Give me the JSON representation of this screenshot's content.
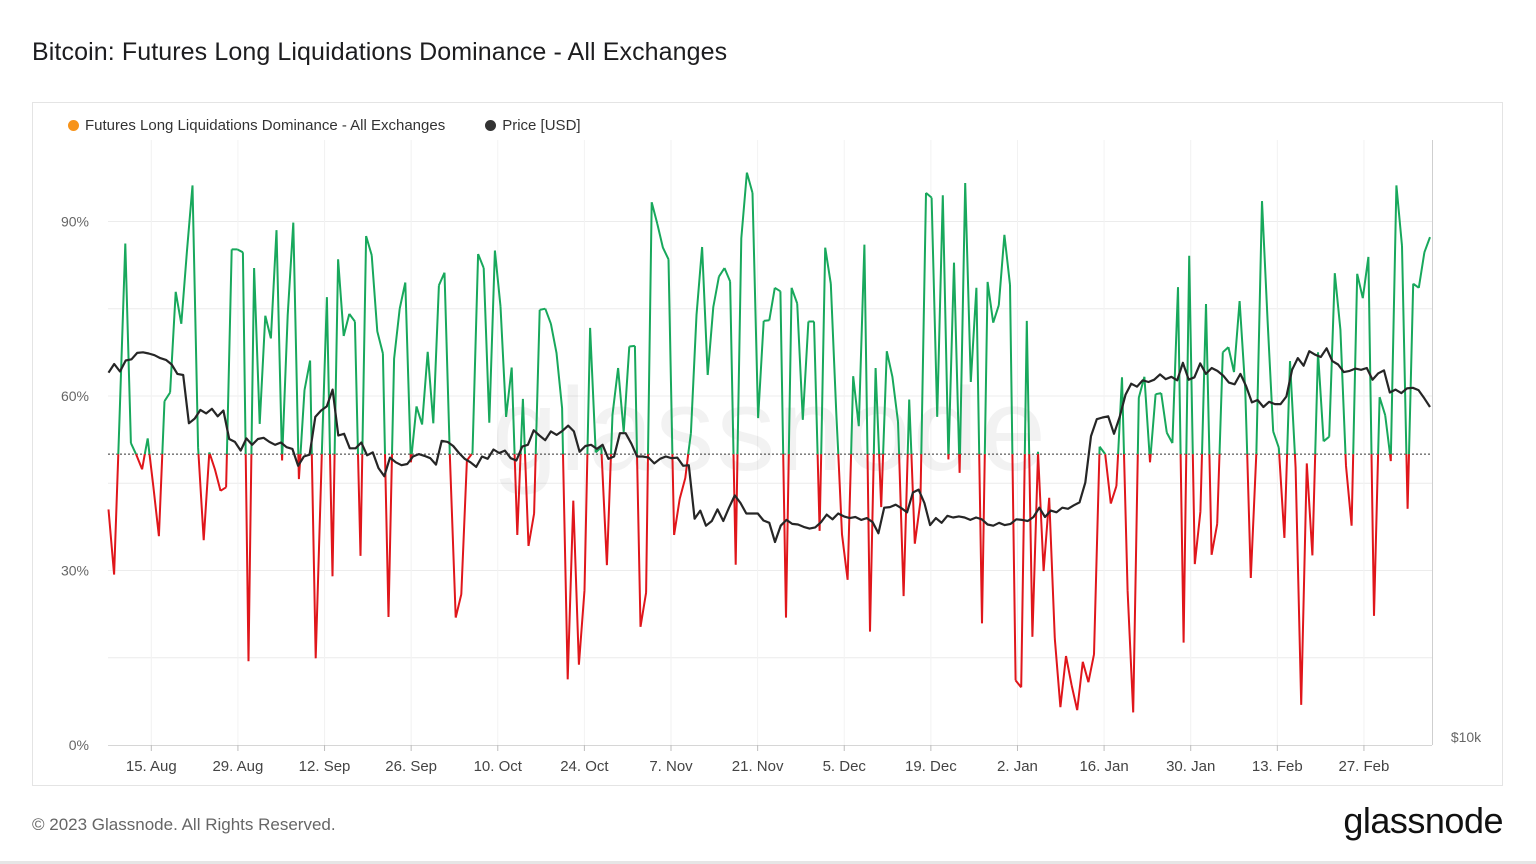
{
  "header": {
    "title": "Bitcoin: Futures Long Liquidations Dominance - All Exchanges"
  },
  "legend": {
    "items": [
      {
        "label": "Futures Long Liquidations Dominance - All Exchanges",
        "color": "#f7931a"
      },
      {
        "label": "Price [USD]",
        "color": "#333333"
      }
    ]
  },
  "footer": {
    "copyright": "© 2023 Glassnode. All Rights Reserved.",
    "brand": "glassnode",
    "watermark": "glassnode"
  },
  "colors": {
    "above": "#18a85c",
    "below": "#e0161b",
    "price": "#262626",
    "grid": "#ececec",
    "axis_text": "#666666"
  },
  "chart_data": {
    "type": "line",
    "title": "Bitcoin: Futures Long Liquidations Dominance - All Exchanges",
    "y_ticks": [
      "0%",
      "30%",
      "60%",
      "90%"
    ],
    "y_tick_values": [
      0,
      30,
      60,
      90
    ],
    "ylim": [
      0,
      104
    ],
    "threshold": 50,
    "right_axis_label": "$10k",
    "x_ticks": [
      "15. Aug",
      "29. Aug",
      "12. Sep",
      "26. Sep",
      "10. Oct",
      "24. Oct",
      "7. Nov",
      "21. Nov",
      "5. Dec",
      "19. Dec",
      "2. Jan",
      "16. Jan",
      "30. Jan",
      "13. Feb",
      "27. Feb"
    ],
    "x_tick_days": [
      7,
      21,
      35,
      49,
      63,
      77,
      91,
      105,
      119,
      133,
      147,
      161,
      175,
      189,
      203
    ],
    "x_range_days": [
      0,
      214
    ],
    "series": [
      {
        "name": "Futures Long Liquidations Dominance - All Exchanges",
        "values": [
          40.5,
          29.3,
          57.1,
          86.2,
          51.9,
          49.8,
          47.4,
          52.7,
          44.5,
          35.9,
          59.1,
          60.6,
          77.9,
          72.4,
          84.8,
          96.2,
          51.1,
          35.2,
          50.3,
          47.4,
          43.7,
          44.3,
          85.2,
          85.2,
          84.7,
          14.4,
          82.0,
          55.2,
          73.8,
          69.9,
          88.5,
          48.9,
          73.9,
          89.8,
          45.7,
          61.0,
          66.1,
          14.9,
          47.0,
          77.0,
          29.0,
          83.5,
          70.3,
          74.1,
          72.8,
          32.5,
          87.5,
          84.2,
          71.1,
          67.3,
          22.0,
          66.4,
          75.0,
          79.5,
          48.6,
          58.2,
          55.1,
          67.6,
          55.3,
          79.0,
          81.2,
          48.6,
          21.9,
          25.9,
          48.9,
          50.2,
          84.4,
          82.0,
          55.4,
          85.0,
          75.4,
          56.4,
          64.9,
          36.1,
          59.5,
          34.2,
          39.8,
          74.8,
          75.0,
          72.4,
          67.4,
          57.9,
          11.3,
          42.0,
          13.8,
          26.6,
          71.7,
          50.3,
          51.2,
          30.9,
          56.8,
          64.8,
          53.8,
          68.5,
          68.6,
          20.3,
          26.2,
          93.3,
          89.6,
          85.5,
          83.5,
          36.1,
          42.3,
          45.9,
          53.6,
          73.9,
          85.6,
          63.6,
          75.3,
          80.5,
          82.0,
          79.7,
          31.0,
          87.1,
          98.4,
          94.9,
          56.2,
          72.9,
          73.0,
          78.6,
          78.0,
          21.9,
          78.6,
          75.9,
          55.9,
          72.8,
          72.8,
          36.8,
          85.5,
          79.3,
          56.6,
          36.2,
          28.4,
          63.4,
          54.8,
          86.0,
          19.5,
          64.8,
          40.9,
          67.7,
          63.3,
          55.6,
          25.6,
          59.4,
          34.6,
          41.8,
          94.9,
          94.1,
          56.4,
          94.5,
          49.1,
          82.9,
          46.8,
          96.6,
          62.4,
          78.6,
          20.9,
          79.6,
          72.6,
          75.6,
          87.7,
          79.1,
          11.1,
          9.9,
          72.9,
          18.6,
          50.4,
          29.9,
          42.5,
          18.3,
          6.5,
          15.3,
          10.3,
          6.0,
          14.3,
          10.8,
          15.6,
          51.3,
          50.0,
          41.5,
          44.5,
          63.2,
          26.5,
          5.6,
          59.7,
          63.3,
          48.6,
          60.3,
          60.5,
          53.7,
          51.9,
          78.7,
          17.6,
          84.1,
          31.1,
          40.1,
          75.8,
          32.7,
          38.0,
          67.5,
          68.4,
          64.1,
          76.3,
          61.3,
          28.7,
          50.4,
          93.5,
          72.9,
          53.9,
          51.1,
          35.6,
          66.0,
          47.7,
          6.9,
          48.4,
          32.6,
          67.5,
          52.2,
          53.0,
          81.1,
          71.4,
          48.0,
          37.7,
          81.0,
          76.8,
          83.9,
          22.2,
          59.8,
          56.7,
          48.8,
          96.2,
          85.8,
          40.6,
          79.3,
          78.6,
          84.7,
          87.3
        ],
        "colors": {
          "above": "#18a85c",
          "below": "#e0161b"
        }
      },
      {
        "name": "Price [USD]",
        "values": [
          64.0,
          65.5,
          64.2,
          66.1,
          66.3,
          67.4,
          67.5,
          67.3,
          67.0,
          66.5,
          66.2,
          65.4,
          63.8,
          63.6,
          55.3,
          56.1,
          57.6,
          57.0,
          57.8,
          56.5,
          57.5,
          52.6,
          52.1,
          50.6,
          52.7,
          51.6,
          52.6,
          52.8,
          52.1,
          51.6,
          52.0,
          51.2,
          50.9,
          48.0,
          49.6,
          49.9,
          56.4,
          57.5,
          58.2,
          61.1,
          53.2,
          53.5,
          51.0,
          51.0,
          52.0,
          49.8,
          50.3,
          47.6,
          46.2,
          49.4,
          48.6,
          48.1,
          48.3,
          49.6,
          50.0,
          49.7,
          49.3,
          48.2,
          52.3,
          52.1,
          51.4,
          50.2,
          49.2,
          48.6,
          47.8,
          49.6,
          49.2,
          50.8,
          50.2,
          50.6,
          49.3,
          48.9,
          51.3,
          51.6,
          54.1,
          53.2,
          52.4,
          53.9,
          53.3,
          54.0,
          54.9,
          53.9,
          50.4,
          51.4,
          51.6,
          50.9,
          51.6,
          49.2,
          49.6,
          53.6,
          53.6,
          51.8,
          49.6,
          49.6,
          49.4,
          48.4,
          49.2,
          49.6,
          49.3,
          49.4,
          48.0,
          48.1,
          38.9,
          40.3,
          37.7,
          38.5,
          40.5,
          38.5,
          40.8,
          42.9,
          41.6,
          39.8,
          39.8,
          39.8,
          38.6,
          38.2,
          34.9,
          37.7,
          38.7,
          38.0,
          37.9,
          37.5,
          37.2,
          37.4,
          38.3,
          39.6,
          38.8,
          39.8,
          39.3,
          39.0,
          39.2,
          38.7,
          39.0,
          38.3,
          36.4,
          40.8,
          40.9,
          41.3,
          40.7,
          40.0,
          43.4,
          43.9,
          41.6,
          37.8,
          39.0,
          38.2,
          39.4,
          39.1,
          39.3,
          39.1,
          38.7,
          39.1,
          38.8,
          37.9,
          37.7,
          38.2,
          37.8,
          38.0,
          38.8,
          38.7,
          38.5,
          39.2,
          40.8,
          39.2,
          40.3,
          40.0,
          40.8,
          40.6,
          41.2,
          41.7,
          45.1,
          53.1,
          56.0,
          56.3,
          56.5,
          53.5,
          56.4,
          60.2,
          62.1,
          61.6,
          62.7,
          62.4,
          62.8,
          63.7,
          62.9,
          63.3,
          62.7,
          65.7,
          62.8,
          63.2,
          65.6,
          63.8,
          64.8,
          64.3,
          63.5,
          62.3,
          62.0,
          63.8,
          61.7,
          58.9,
          59.3,
          58.1,
          59.0,
          58.6,
          58.6,
          59.9,
          64.5,
          66.5,
          65.2,
          67.7,
          67.1,
          66.7,
          68.2,
          66.0,
          65.4,
          64.1,
          64.3,
          64.7,
          64.5,
          64.8,
          62.8,
          63.9,
          64.4,
          60.6,
          61.1,
          60.5,
          61.3,
          61.4,
          61.0,
          59.6,
          58.1
        ]
      }
    ],
    "legend": "top-left",
    "grid": true
  }
}
